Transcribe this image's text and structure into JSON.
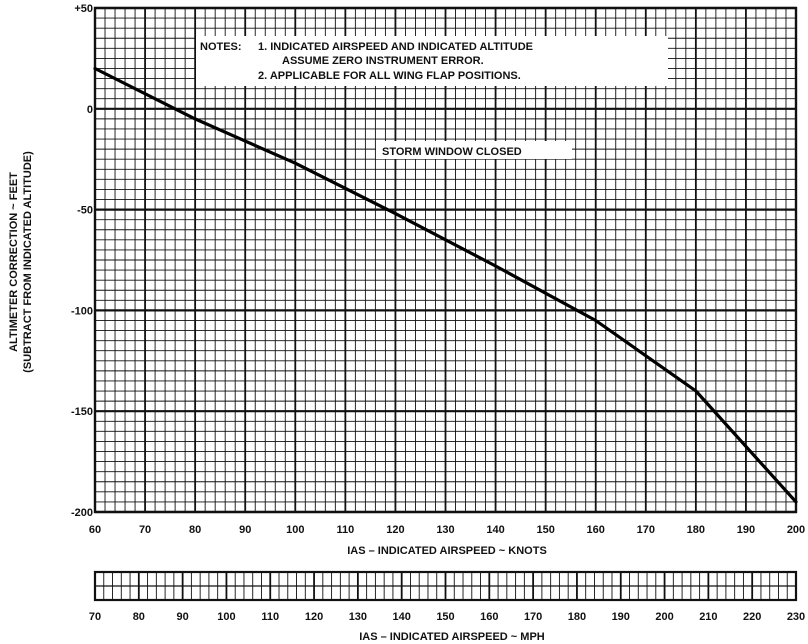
{
  "chart_data": {
    "type": "line",
    "title": "",
    "xlabel": "IAS – INDICATED AIRSPEED ~ KNOTS",
    "ylabel": "ALTIMETER CORRECTION ~ FEET",
    "ylabel2": "(SUBTRACT FROM INDICATED ALTITUDE)",
    "xlim": [
      60,
      200
    ],
    "ylim": [
      -200,
      50
    ],
    "x_ticks": [
      60,
      70,
      80,
      90,
      100,
      110,
      120,
      130,
      140,
      150,
      160,
      170,
      180,
      190,
      200
    ],
    "y_ticks": [
      50,
      0,
      -50,
      -100,
      -150,
      -200
    ],
    "y_tick_labels": [
      "+50",
      "0",
      "-50",
      "-100",
      "-150",
      "-200"
    ],
    "grid": true,
    "series": [
      {
        "x": [
          60,
          80,
          100,
          120,
          140,
          160,
          180,
          200
        ],
        "y": [
          20,
          -5,
          -27,
          -52,
          -78,
          -105,
          -140,
          -195
        ]
      }
    ],
    "annotations": {
      "notes_heading": "NOTES:",
      "note_1_line1": "1. INDICATED AIRSPEED AND INDICATED ALTITUDE",
      "note_1_line2": "ASSUME ZERO INSTRUMENT ERROR.",
      "note_2": "2. APPLICABLE FOR ALL WING FLAP POSITIONS.",
      "condition": "STORM WINDOW CLOSED"
    },
    "secondary_axis": {
      "label": "IAS – INDICATED AIRSPEED ~ MPH",
      "ticks": [
        70,
        80,
        90,
        100,
        110,
        120,
        130,
        140,
        150,
        160,
        170,
        180,
        190,
        200,
        210,
        220,
        230
      ]
    }
  }
}
